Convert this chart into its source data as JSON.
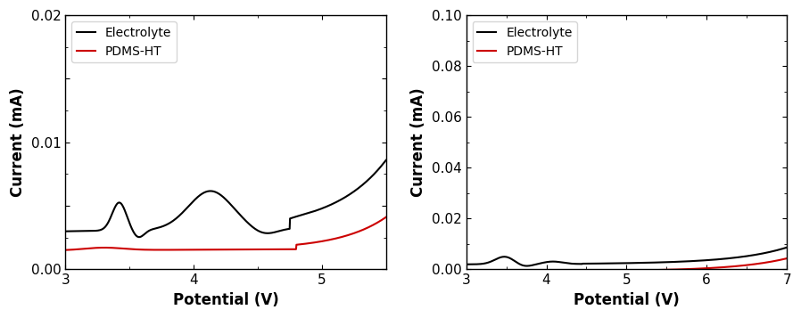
{
  "left": {
    "xlim": [
      3,
      5.5
    ],
    "ylim": [
      0.0,
      0.02
    ],
    "xlabel": "Potential (V)",
    "ylabel": "Current (mA)",
    "yticks": [
      0.0,
      0.005,
      0.01,
      0.015,
      0.02
    ],
    "xticks": [
      3,
      4,
      5
    ],
    "legend_labels": [
      "Electrolyte",
      "PDMS-HT"
    ],
    "electrolyte_color": "#000000",
    "pdms_color": "#cc0000"
  },
  "right": {
    "xlim": [
      3,
      7
    ],
    "ylim": [
      0.0,
      0.1
    ],
    "xlabel": "Potential (V)",
    "ylabel": "Current (mA)",
    "yticks": [
      0.0,
      0.02,
      0.04,
      0.06,
      0.08,
      0.1
    ],
    "xticks": [
      3,
      4,
      5,
      6,
      7
    ],
    "legend_labels": [
      "Electrolyte",
      "PDMS-HT"
    ],
    "electrolyte_color": "#000000",
    "pdms_color": "#cc0000"
  },
  "background_color": "#ffffff",
  "line_width": 1.5,
  "font_size": 11,
  "label_font_size": 12
}
